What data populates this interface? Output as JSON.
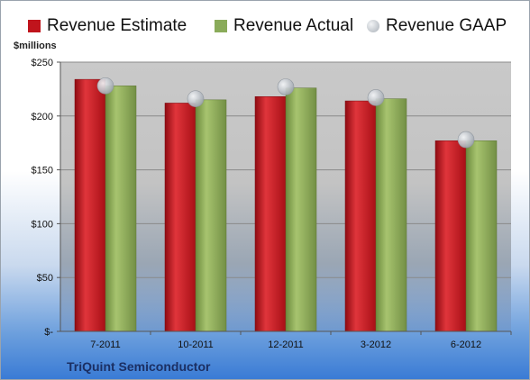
{
  "legend": [
    {
      "label": "Revenue Estimate",
      "color": "#c0141c",
      "marker": "square"
    },
    {
      "label": "Revenue Actual",
      "color": "#8aab5a",
      "marker": "square"
    },
    {
      "label": "Revenue GAAP",
      "color": "#b6bcc4",
      "marker": "circle"
    }
  ],
  "unit_label": "$millions",
  "company": "TriQuint Semiconductor",
  "chart_data": {
    "type": "bar",
    "categories": [
      "7-2011",
      "10-2011",
      "12-2011",
      "3-2012",
      "6-2012"
    ],
    "series": [
      {
        "name": "Revenue Estimate",
        "type": "bar",
        "color": "#c0141c",
        "values": [
          234,
          212,
          218,
          214,
          177
        ]
      },
      {
        "name": "Revenue Actual",
        "type": "bar",
        "color": "#8aab5a",
        "values": [
          228,
          215,
          226,
          216,
          177
        ]
      },
      {
        "name": "Revenue GAAP",
        "type": "scatter",
        "color": "#b6bcc4",
        "values": [
          228,
          216,
          227,
          217,
          178
        ]
      }
    ],
    "ylabel": "$millions",
    "ylim": [
      0,
      250
    ],
    "yticks": [
      0,
      50,
      100,
      150,
      200,
      250
    ],
    "ytick_labels": [
      "$-",
      "$50",
      "$100",
      "$150",
      "$200",
      "$250"
    ],
    "grid": true,
    "legend_position": "top"
  }
}
